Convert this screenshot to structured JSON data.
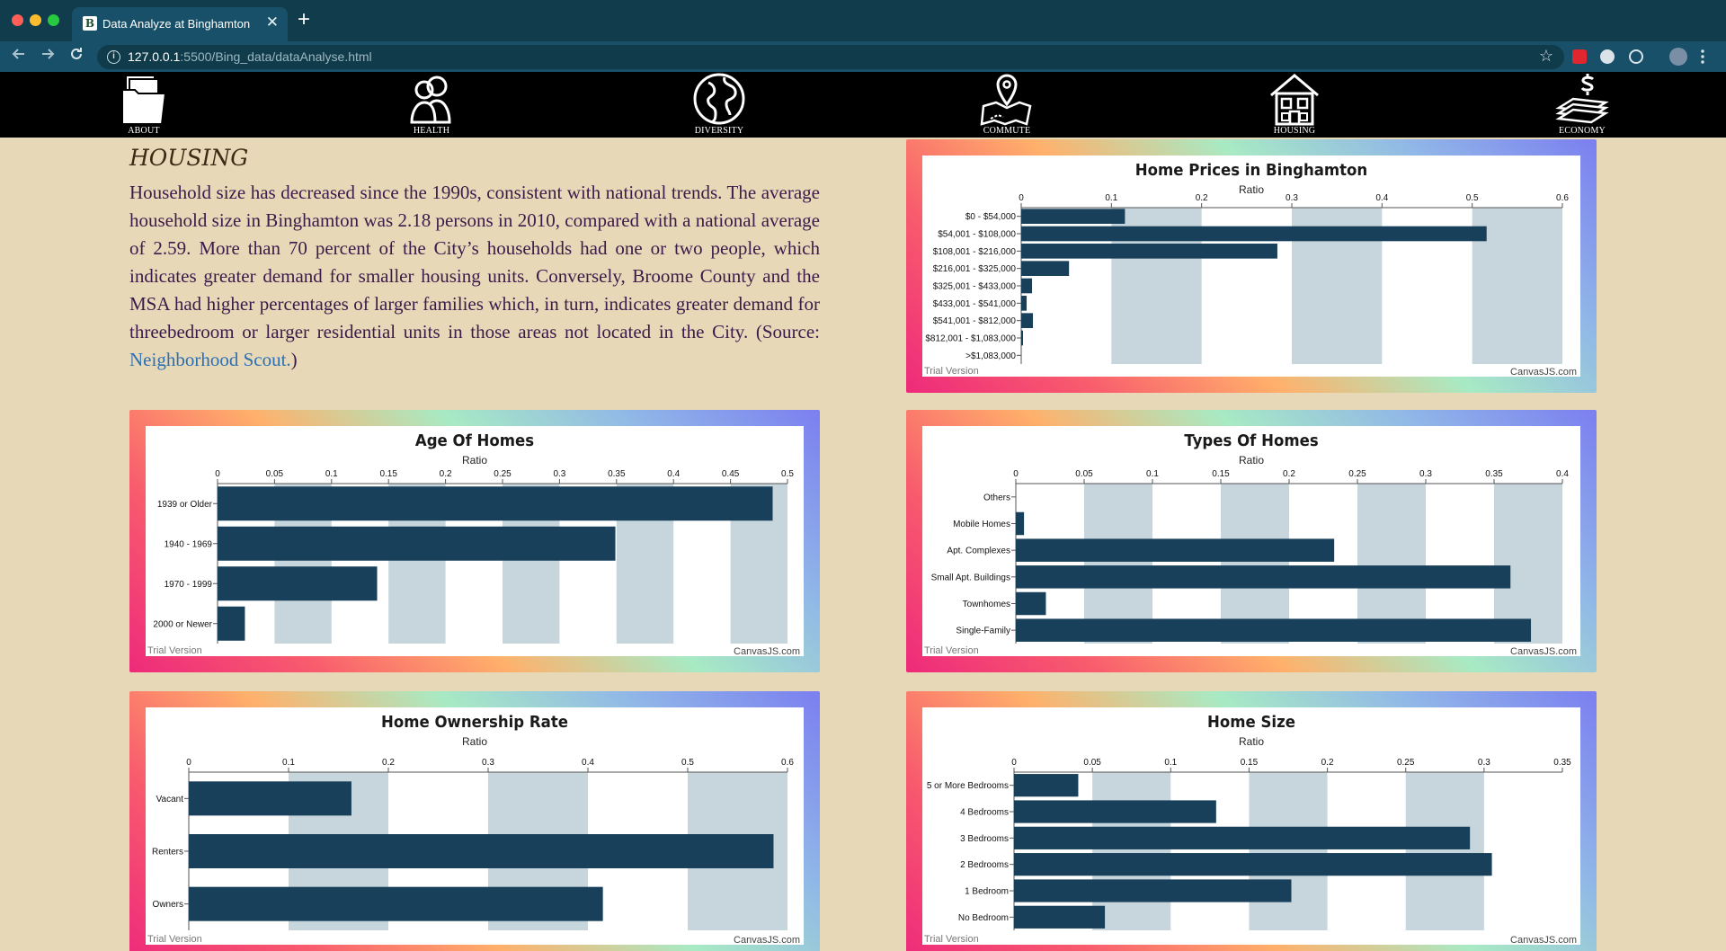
{
  "browser": {
    "tab_title": "Data Analyze at Binghamton",
    "tab_favicon": "B",
    "url_host": "127.0.0.1",
    "url_rest": ":5500/Bing_data/dataAnalyse.html",
    "close_glyph": "✕",
    "new_tab_glyph": "+"
  },
  "nav": {
    "items": [
      {
        "label": "ABOUT",
        "icon": "folder-icon"
      },
      {
        "label": "HEALTH",
        "icon": "people-icon"
      },
      {
        "label": "DIVERSITY",
        "icon": "globe-icon"
      },
      {
        "label": "COMMUTE",
        "icon": "map-pin-icon"
      },
      {
        "label": "HOUSING",
        "icon": "house-icon"
      },
      {
        "label": "ECONOMY",
        "icon": "money-icon"
      }
    ]
  },
  "content": {
    "heading": "HOUSING",
    "paragraph": "Household size has decreased since the 1990s, consistent with national trends. The average household size in Binghamton was 2.18 persons in 2010, compared with a national average of 2.59. More than 70 percent of the City’s households had one or two people, which indicates greater demand for smaller housing units. Conversely, Broome County and the MSA had higher percentages of larger families which, in turn, indicates greater demand for threebedroom or larger residential units in those areas not located in the City. (Source: ",
    "source_link": "Neighborhood Scout.",
    "paragraph_end": ")"
  },
  "colors": {
    "bar": "#18405a",
    "stripe": "#c7d5dc"
  },
  "chart_data": [
    {
      "id": "home-prices",
      "type": "bar",
      "title": "Home Prices in Binghamton",
      "ylabel": "Ratio",
      "categories": [
        "$0 - $54,000",
        "$54,001 - $108,000",
        "$108,001 - $216,000",
        "$216,001 - $325,000",
        "$325,001 - $433,000",
        "$433,001 - $541,000",
        "$541,001 - $812,000",
        "$812,001 - $1,083,000",
        ">$1,083,000"
      ],
      "values": [
        0.115,
        0.516,
        0.284,
        0.053,
        0.012,
        0.006,
        0.013,
        0.002,
        0.0
      ],
      "ylim": [
        0,
        0.6
      ],
      "ticks": [
        0,
        0.1,
        0.2,
        0.3,
        0.4,
        0.5,
        0.6
      ],
      "tick_labels": [
        "0",
        "0.1",
        "0.2",
        "0.3",
        "0.4",
        "0.5",
        "0.6"
      ],
      "watermark": "Trial Version",
      "credit": "CanvasJS.com"
    },
    {
      "id": "age-of-homes",
      "type": "bar",
      "title": "Age Of Homes",
      "ylabel": "Ratio",
      "categories": [
        "1939 or Older",
        "1940 - 1969",
        "1970 - 1999",
        "2000 or Newer"
      ],
      "values": [
        0.487,
        0.349,
        0.14,
        0.024
      ],
      "ylim": [
        0,
        0.5
      ],
      "ticks": [
        0,
        0.05,
        0.1,
        0.15,
        0.2,
        0.25,
        0.3,
        0.35,
        0.4,
        0.45,
        0.5
      ],
      "tick_labels": [
        "0",
        "0.05",
        "0.1",
        "0.15",
        "0.2",
        "0.25",
        "0.3",
        "0.35",
        "0.4",
        "0.45",
        "0.5"
      ],
      "watermark": "Trial Version",
      "credit": "CanvasJS.com"
    },
    {
      "id": "types-of-homes",
      "type": "bar",
      "title": "Types Of Homes",
      "ylabel": "Ratio",
      "categories": [
        "Others",
        "Mobile Homes",
        "Apt. Complexes",
        "Small Apt. Buildings",
        "Townhomes",
        "Single-Family"
      ],
      "values": [
        0.0,
        0.006,
        0.233,
        0.362,
        0.022,
        0.377
      ],
      "ylim": [
        0,
        0.4
      ],
      "ticks": [
        0,
        0.05,
        0.1,
        0.15,
        0.2,
        0.25,
        0.3,
        0.35,
        0.4
      ],
      "tick_labels": [
        "0",
        "0.05",
        "0.1",
        "0.15",
        "0.2",
        "0.25",
        "0.3",
        "0.35",
        "0.4"
      ],
      "watermark": "Trial Version",
      "credit": "CanvasJS.com"
    },
    {
      "id": "home-ownership",
      "type": "bar",
      "title": "Home Ownership Rate",
      "ylabel": "Ratio",
      "categories": [
        "Vacant",
        "Renters",
        "Owners"
      ],
      "values": [
        0.163,
        0.586,
        0.415
      ],
      "ylim": [
        0,
        0.6
      ],
      "ticks": [
        0,
        0.1,
        0.2,
        0.3,
        0.4,
        0.5,
        0.6
      ],
      "tick_labels": [
        "0",
        "0.1",
        "0.2",
        "0.3",
        "0.4",
        "0.5",
        "0.6"
      ],
      "watermark": "Trial Version",
      "credit": "CanvasJS.com"
    },
    {
      "id": "home-size",
      "type": "bar",
      "title": "Home Size",
      "ylabel": "Ratio",
      "categories": [
        "5 or More Bedrooms",
        "4 Bedrooms",
        "3 Bedrooms",
        "2 Bedrooms",
        "1 Bedroom",
        "No Bedroom"
      ],
      "values": [
        0.041,
        0.129,
        0.291,
        0.305,
        0.177,
        0.058
      ],
      "ylim": [
        0,
        0.35
      ],
      "ticks": [
        0,
        0.05,
        0.1,
        0.15,
        0.2,
        0.25,
        0.3,
        0.35
      ],
      "tick_labels": [
        "0",
        "0.05",
        "0.1",
        "0.15",
        "0.2",
        "0.25",
        "0.3",
        "0.35"
      ],
      "watermark": "Trial Version",
      "credit": "CanvasJS.com"
    }
  ]
}
